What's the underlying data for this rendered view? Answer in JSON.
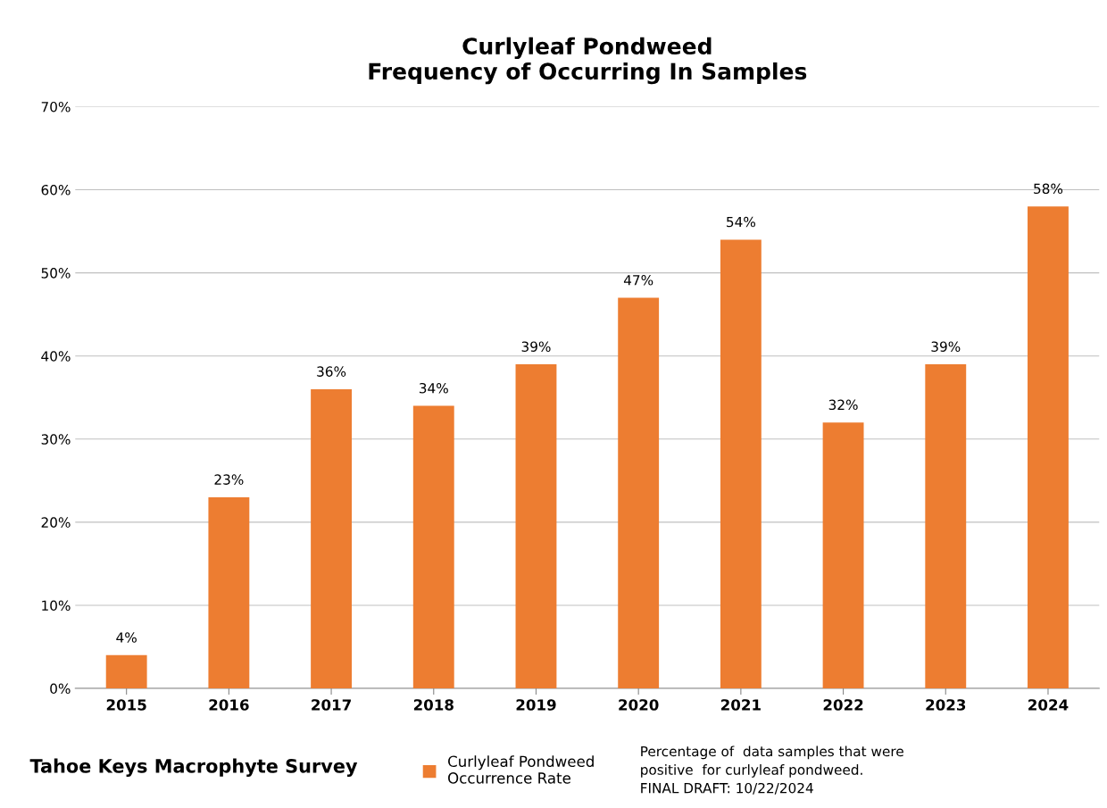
{
  "chart_data": {
    "type": "bar",
    "title": "Curlyleaf Pondweed\nFrequency of Occurring In Samples",
    "categories": [
      "2015",
      "2016",
      "2017",
      "2018",
      "2019",
      "2020",
      "2021",
      "2022",
      "2023",
      "2024"
    ],
    "series": [
      {
        "name": "Curlyleaf Pondweed\nOccurrence Rate",
        "color": "#ed7d31",
        "values": [
          4,
          23,
          36,
          34,
          39,
          47,
          54,
          32,
          39,
          58
        ],
        "value_labels": [
          "4%",
          "23%",
          "36%",
          "34%",
          "39%",
          "47%",
          "54%",
          "32%",
          "39%",
          "58%"
        ]
      }
    ],
    "ylim": [
      0,
      70
    ],
    "yticks": [
      {
        "value": 0,
        "label": "0%"
      },
      {
        "value": 10,
        "label": "10%"
      },
      {
        "value": 20,
        "label": "20%"
      },
      {
        "value": 30,
        "label": "30%"
      },
      {
        "value": 40,
        "label": "40%"
      },
      {
        "value": 50,
        "label": "50%"
      },
      {
        "value": 60,
        "label": "60%"
      },
      {
        "value": 70,
        "label": "70%"
      }
    ],
    "grid": "y",
    "legend": "bottom",
    "annotations": [
      "Tahoe Keys Macrophyte Survey",
      "Percentage of  data samples that were\npositive  for curlyleaf pondweed.\nFINAL DRAFT: 10/22/2024"
    ]
  }
}
